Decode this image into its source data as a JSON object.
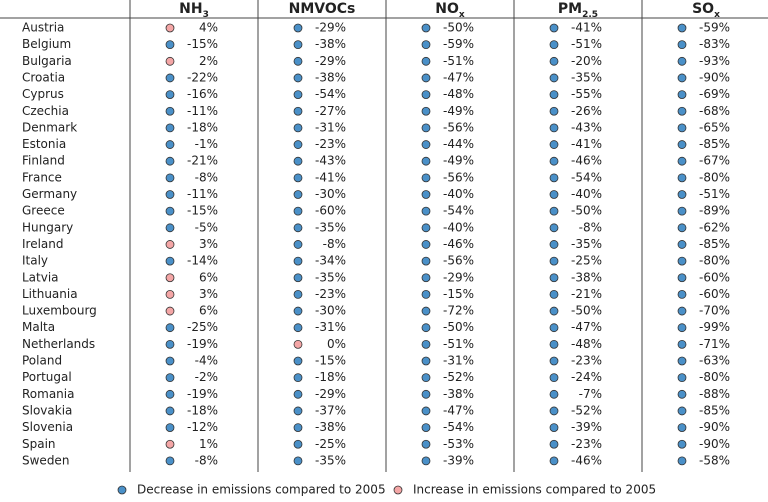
{
  "table": {
    "columns": [
      {
        "name": "NH",
        "sub": "3"
      },
      {
        "name": "NMVOCs"
      },
      {
        "name": "NO",
        "sub": "x"
      },
      {
        "name": "PM",
        "sub": "2.5"
      },
      {
        "name": "SO",
        "sub": "x"
      }
    ],
    "rows": [
      [
        "Austria",
        "4%",
        "-29%",
        "-50%",
        "-41%",
        "-59%"
      ],
      [
        "Belgium",
        "-15%",
        "-38%",
        "-59%",
        "-51%",
        "-83%"
      ],
      [
        "Bulgaria",
        "2%",
        "-29%",
        "-51%",
        "-20%",
        "-93%"
      ],
      [
        "Croatia",
        "-22%",
        "-38%",
        "-47%",
        "-35%",
        "-90%"
      ],
      [
        "Cyprus",
        "-16%",
        "-54%",
        "-48%",
        "-55%",
        "-69%"
      ],
      [
        "Czechia",
        "-11%",
        "-27%",
        "-49%",
        "-26%",
        "-68%"
      ],
      [
        "Denmark",
        "-18%",
        "-31%",
        "-56%",
        "-43%",
        "-65%"
      ],
      [
        "Estonia",
        "-1%",
        "-23%",
        "-44%",
        "-41%",
        "-85%"
      ],
      [
        "Finland",
        "-21%",
        "-43%",
        "-49%",
        "-46%",
        "-67%"
      ],
      [
        "France",
        "-8%",
        "-41%",
        "-56%",
        "-54%",
        "-80%"
      ],
      [
        "Germany",
        "-11%",
        "-30%",
        "-40%",
        "-40%",
        "-51%"
      ],
      [
        "Greece",
        "-15%",
        "-60%",
        "-54%",
        "-50%",
        "-89%"
      ],
      [
        "Hungary",
        "-5%",
        "-35%",
        "-40%",
        "-8%",
        "-62%"
      ],
      [
        "Ireland",
        "3%",
        "-8%",
        "-46%",
        "-35%",
        "-85%"
      ],
      [
        "Italy",
        "-14%",
        "-34%",
        "-56%",
        "-25%",
        "-80%"
      ],
      [
        "Latvia",
        "6%",
        "-35%",
        "-29%",
        "-38%",
        "-60%"
      ],
      [
        "Lithuania",
        "3%",
        "-23%",
        "-15%",
        "-21%",
        "-60%"
      ],
      [
        "Luxembourg",
        "6%",
        "-30%",
        "-72%",
        "-50%",
        "-70%"
      ],
      [
        "Malta",
        "-25%",
        "-31%",
        "-50%",
        "-47%",
        "-99%"
      ],
      [
        "Netherlands",
        "-19%",
        "0%",
        "-51%",
        "-48%",
        "-71%"
      ],
      [
        "Poland",
        "-4%",
        "-15%",
        "-31%",
        "-23%",
        "-63%"
      ],
      [
        "Portugal",
        "-2%",
        "-18%",
        "-52%",
        "-24%",
        "-80%"
      ],
      [
        "Romania",
        "-19%",
        "-29%",
        "-38%",
        "-7%",
        "-88%"
      ],
      [
        "Slovakia",
        "-18%",
        "-37%",
        "-47%",
        "-52%",
        "-85%"
      ],
      [
        "Slovenia",
        "-12%",
        "-38%",
        "-54%",
        "-39%",
        "-90%"
      ],
      [
        "Spain",
        "1%",
        "-25%",
        "-53%",
        "-23%",
        "-90%"
      ],
      [
        "Sweden",
        "-8%",
        "-35%",
        "-39%",
        "-46%",
        "-58%"
      ]
    ]
  },
  "legend": [
    {
      "label": "Decrease in emissions compared to 2005",
      "color": "#4a90c8"
    },
    {
      "label": "Increase in emissions compared to 2005",
      "color": "#f4a6a6"
    }
  ]
}
